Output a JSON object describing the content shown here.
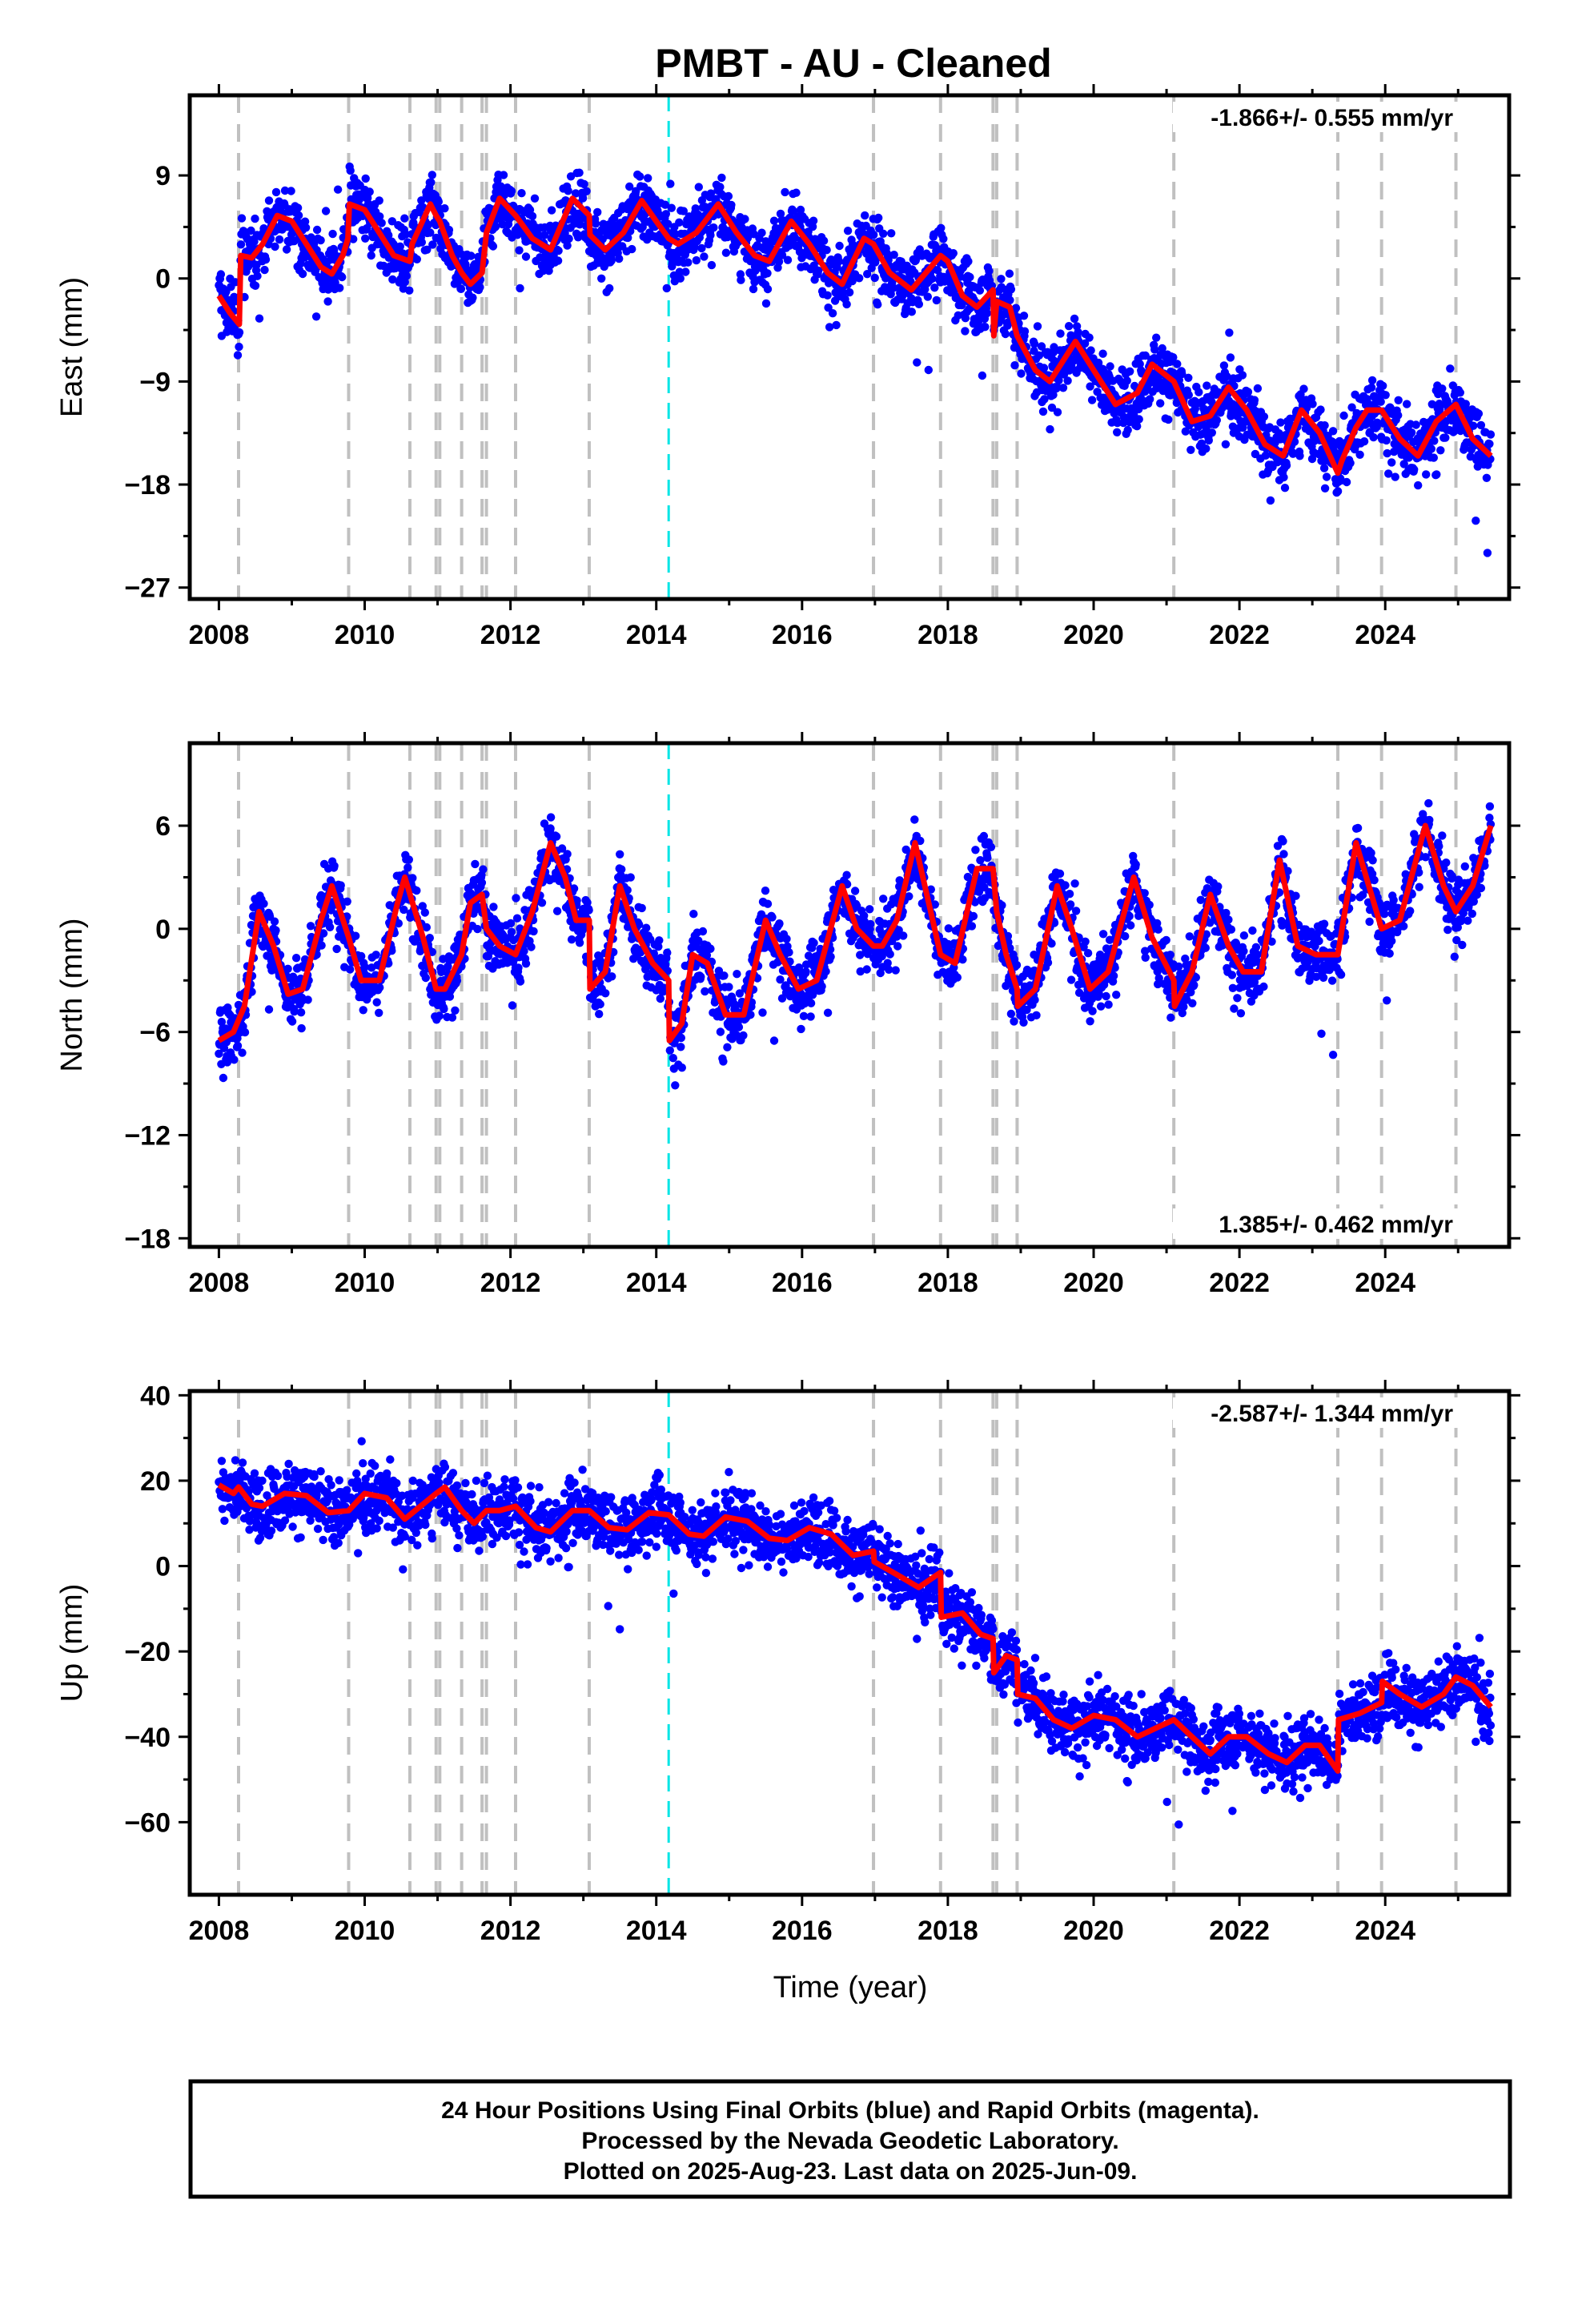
{
  "title": "PMBT  - AU - Cleaned",
  "footer": {
    "line1": "24 Hour Positions Using Final Orbits (blue) and Rapid Orbits (magenta).",
    "line2": "Processed by the Nevada Geodetic Laboratory.",
    "line3": "Plotted on 2025-Aug-23. Last data on 2025-Jun-09."
  },
  "colors": {
    "final_orbits": "#0000ff",
    "model_fit": "#ff0000",
    "equipment_change": "#c0c0c0",
    "earthquake": "#00e5e5"
  },
  "chart_data": [
    {
      "type": "scatter",
      "component": "east",
      "ylabel": "East (mm)",
      "xlabel": "",
      "rate_text": "-1.866+/- 0.555 mm/yr",
      "rate_position": "top-right",
      "xlim": [
        2007.6,
        2025.7
      ],
      "ylim": [
        -28,
        16
      ],
      "x_ticks": [
        "2008",
        "2010",
        "2012",
        "2014",
        "2016",
        "2018",
        "2020",
        "2022",
        "2024"
      ],
      "y_ticks": [
        "9",
        "0",
        "-9",
        "-18",
        "-27"
      ],
      "y_tick_values": [
        9,
        0,
        -9,
        -18,
        -27
      ],
      "events": [
        2008.27,
        2009.78,
        2010.62,
        2010.98,
        2011.03,
        2011.33,
        2011.61,
        2011.67,
        2012.07,
        2013.08,
        2016.98,
        2017.9,
        2018.62,
        2018.67,
        2018.95,
        2021.1,
        2023.35,
        2023.95,
        2024.97
      ],
      "earthquake_events": [
        2014.17
      ],
      "fit_line": [
        [
          2008.0,
          -1.5
        ],
        [
          2008.15,
          -3.0
        ],
        [
          2008.28,
          -4.0
        ],
        [
          2008.3,
          2.0
        ],
        [
          2008.45,
          1.8
        ],
        [
          2008.6,
          3.0
        ],
        [
          2008.8,
          5.5
        ],
        [
          2009.0,
          5.0
        ],
        [
          2009.2,
          3.0
        ],
        [
          2009.4,
          1.0
        ],
        [
          2009.55,
          0.4
        ],
        [
          2009.7,
          2.0
        ],
        [
          2009.77,
          3.5
        ],
        [
          2009.79,
          6.5
        ],
        [
          2010.0,
          6.0
        ],
        [
          2010.2,
          4.0
        ],
        [
          2010.4,
          2.0
        ],
        [
          2010.62,
          1.5
        ],
        [
          2010.65,
          3.0
        ],
        [
          2010.9,
          6.5
        ],
        [
          2010.98,
          5.5
        ],
        [
          2011.03,
          5.0
        ],
        [
          2011.2,
          2.0
        ],
        [
          2011.33,
          0.5
        ],
        [
          2011.45,
          -0.5
        ],
        [
          2011.61,
          0.5
        ],
        [
          2011.67,
          4.0
        ],
        [
          2011.85,
          7.0
        ],
        [
          2012.07,
          5.5
        ],
        [
          2012.3,
          3.5
        ],
        [
          2012.55,
          2.5
        ],
        [
          2012.85,
          7.0
        ],
        [
          2013.08,
          5.5
        ],
        [
          2013.09,
          3.8
        ],
        [
          2013.3,
          2.5
        ],
        [
          2013.55,
          4.0
        ],
        [
          2013.8,
          6.8
        ],
        [
          2014.0,
          5.0
        ],
        [
          2014.17,
          3.5
        ],
        [
          2014.3,
          3.0
        ],
        [
          2014.55,
          4.0
        ],
        [
          2014.85,
          6.5
        ],
        [
          2015.1,
          4.0
        ],
        [
          2015.35,
          2.0
        ],
        [
          2015.55,
          1.5
        ],
        [
          2015.85,
          5.0
        ],
        [
          2016.1,
          3.0
        ],
        [
          2016.35,
          0.5
        ],
        [
          2016.55,
          -0.5
        ],
        [
          2016.85,
          3.5
        ],
        [
          2016.98,
          3.0
        ],
        [
          2017.2,
          0.5
        ],
        [
          2017.5,
          -1.0
        ],
        [
          2017.9,
          2.0
        ],
        [
          2018.0,
          1.5
        ],
        [
          2018.2,
          -1.5
        ],
        [
          2018.4,
          -2.5
        ],
        [
          2018.62,
          -1.0
        ],
        [
          2018.63,
          -5.0
        ],
        [
          2018.67,
          -2.0
        ],
        [
          2018.85,
          -2.5
        ],
        [
          2018.95,
          -5.0
        ],
        [
          2019.2,
          -8.0
        ],
        [
          2019.4,
          -9.0
        ],
        [
          2019.75,
          -5.5
        ],
        [
          2020.0,
          -8.0
        ],
        [
          2020.3,
          -11.0
        ],
        [
          2020.6,
          -10.0
        ],
        [
          2020.8,
          -7.5
        ],
        [
          2021.1,
          -9.0
        ],
        [
          2021.35,
          -12.5
        ],
        [
          2021.6,
          -12.0
        ],
        [
          2021.85,
          -9.5
        ],
        [
          2022.1,
          -11.5
        ],
        [
          2022.35,
          -14.5
        ],
        [
          2022.6,
          -15.5
        ],
        [
          2022.85,
          -11.5
        ],
        [
          2023.1,
          -13.5
        ],
        [
          2023.35,
          -17.0
        ],
        [
          2023.4,
          -16.0
        ],
        [
          2023.6,
          -13.0
        ],
        [
          2023.75,
          -11.5
        ],
        [
          2023.95,
          -11.5
        ],
        [
          2024.2,
          -14.0
        ],
        [
          2024.45,
          -15.5
        ],
        [
          2024.7,
          -12.5
        ],
        [
          2024.97,
          -11.0
        ],
        [
          2025.2,
          -14.0
        ],
        [
          2025.45,
          -15.5
        ]
      ]
    },
    {
      "type": "scatter",
      "component": "north",
      "ylabel": "North (mm)",
      "xlabel": "",
      "rate_text": "1.385+/- 0.462 mm/yr",
      "rate_position": "bottom-right",
      "xlim": [
        2007.6,
        2025.7
      ],
      "ylim": [
        -18.5,
        10.8
      ],
      "x_ticks": [
        "2008",
        "2010",
        "2012",
        "2014",
        "2016",
        "2018",
        "2020",
        "2022",
        "2024"
      ],
      "y_ticks": [
        "6",
        "0",
        "-6",
        "-12",
        "-18"
      ],
      "y_tick_values": [
        6,
        0,
        -6,
        -12,
        -18
      ],
      "events": [
        2008.27,
        2009.78,
        2010.62,
        2010.98,
        2011.03,
        2011.33,
        2011.61,
        2011.67,
        2012.07,
        2013.08,
        2016.98,
        2017.9,
        2018.62,
        2018.67,
        2018.95,
        2021.1,
        2023.35,
        2023.95,
        2024.97
      ],
      "earthquake_events": [
        2014.17
      ],
      "fit_line": [
        [
          2008.0,
          -6.5
        ],
        [
          2008.2,
          -6.0
        ],
        [
          2008.35,
          -4.5
        ],
        [
          2008.55,
          1.0
        ],
        [
          2008.75,
          -1.0
        ],
        [
          2008.95,
          -3.8
        ],
        [
          2009.15,
          -3.5
        ],
        [
          2009.4,
          0.5
        ],
        [
          2009.55,
          2.5
        ],
        [
          2009.78,
          -0.5
        ],
        [
          2009.95,
          -3.0
        ],
        [
          2010.2,
          -3.0
        ],
        [
          2010.45,
          1.5
        ],
        [
          2010.55,
          3.0
        ],
        [
          2010.8,
          -0.5
        ],
        [
          2010.98,
          -3.5
        ],
        [
          2011.1,
          -3.5
        ],
        [
          2011.33,
          -1.5
        ],
        [
          2011.45,
          1.5
        ],
        [
          2011.61,
          2.0
        ],
        [
          2011.67,
          0.0
        ],
        [
          2011.85,
          -1.0
        ],
        [
          2012.07,
          -1.5
        ],
        [
          2012.3,
          1.0
        ],
        [
          2012.55,
          5.0
        ],
        [
          2012.75,
          3.0
        ],
        [
          2012.9,
          0.5
        ],
        [
          2013.08,
          0.5
        ],
        [
          2013.09,
          -3.5
        ],
        [
          2013.3,
          -2.5
        ],
        [
          2013.5,
          2.5
        ],
        [
          2013.7,
          0.0
        ],
        [
          2013.95,
          -2.0
        ],
        [
          2014.17,
          -3.0
        ],
        [
          2014.18,
          -6.5
        ],
        [
          2014.35,
          -5.5
        ],
        [
          2014.5,
          -1.5
        ],
        [
          2014.7,
          -2.0
        ],
        [
          2014.95,
          -5.0
        ],
        [
          2015.2,
          -5.0
        ],
        [
          2015.5,
          0.5
        ],
        [
          2015.7,
          -1.5
        ],
        [
          2015.95,
          -3.5
        ],
        [
          2016.2,
          -3.0
        ],
        [
          2016.55,
          2.5
        ],
        [
          2016.75,
          0.0
        ],
        [
          2016.98,
          -1.0
        ],
        [
          2017.1,
          -1.0
        ],
        [
          2017.3,
          0.5
        ],
        [
          2017.55,
          5.0
        ],
        [
          2017.9,
          -1.5
        ],
        [
          2018.1,
          -2.0
        ],
        [
          2018.4,
          3.5
        ],
        [
          2018.62,
          3.5
        ],
        [
          2018.67,
          1.0
        ],
        [
          2018.8,
          -1.5
        ],
        [
          2018.95,
          -3.5
        ],
        [
          2018.96,
          -4.5
        ],
        [
          2019.2,
          -3.5
        ],
        [
          2019.5,
          2.5
        ],
        [
          2019.7,
          0.0
        ],
        [
          2019.95,
          -3.5
        ],
        [
          2020.2,
          -2.5
        ],
        [
          2020.55,
          3.0
        ],
        [
          2020.8,
          -0.5
        ],
        [
          2021.1,
          -3.0
        ],
        [
          2021.11,
          -4.5
        ],
        [
          2021.35,
          -2.5
        ],
        [
          2021.6,
          2.0
        ],
        [
          2021.85,
          -1.0
        ],
        [
          2022.05,
          -2.5
        ],
        [
          2022.3,
          -2.5
        ],
        [
          2022.55,
          4.0
        ],
        [
          2022.8,
          -1.0
        ],
        [
          2023.05,
          -1.5
        ],
        [
          2023.35,
          -1.5
        ],
        [
          2023.6,
          5.0
        ],
        [
          2023.95,
          0.0
        ],
        [
          2024.2,
          0.5
        ],
        [
          2024.55,
          6.0
        ],
        [
          2024.8,
          2.5
        ],
        [
          2024.97,
          1.0
        ],
        [
          2025.2,
          2.5
        ],
        [
          2025.45,
          6.0
        ]
      ]
    },
    {
      "type": "scatter",
      "component": "up",
      "ylabel": "Up (mm)",
      "xlabel": "Time (year)",
      "rate_text": "-2.587+/- 1.344 mm/yr",
      "rate_position": "top-right",
      "xlim": [
        2007.6,
        2025.7
      ],
      "ylim": [
        -77,
        41
      ],
      "x_ticks": [
        "2008",
        "2010",
        "2012",
        "2014",
        "2016",
        "2018",
        "2020",
        "2022",
        "2024"
      ],
      "y_ticks": [
        "40",
        "20",
        "0",
        "-20",
        "-40",
        "-60"
      ],
      "y_tick_values": [
        40,
        20,
        0,
        -20,
        -40,
        -60
      ],
      "events": [
        2008.27,
        2009.78,
        2010.62,
        2010.98,
        2011.03,
        2011.33,
        2011.61,
        2011.67,
        2012.07,
        2013.08,
        2016.98,
        2017.9,
        2018.62,
        2018.67,
        2018.95,
        2021.1,
        2023.35,
        2023.95,
        2024.97
      ],
      "earthquake_events": [
        2014.17
      ],
      "fit_line": [
        [
          2008.0,
          19.0
        ],
        [
          2008.2,
          17.0
        ],
        [
          2008.27,
          18.5
        ],
        [
          2008.45,
          14.5
        ],
        [
          2008.6,
          14.0
        ],
        [
          2008.9,
          17.0
        ],
        [
          2009.2,
          16.5
        ],
        [
          2009.5,
          12.5
        ],
        [
          2009.78,
          13.0
        ],
        [
          2010.0,
          17.0
        ],
        [
          2010.3,
          16.0
        ],
        [
          2010.55,
          11.0
        ],
        [
          2010.98,
          17.0
        ],
        [
          2011.1,
          18.5
        ],
        [
          2011.33,
          13.0
        ],
        [
          2011.5,
          10.0
        ],
        [
          2011.67,
          13.0
        ],
        [
          2011.85,
          13.0
        ],
        [
          2012.07,
          14.0
        ],
        [
          2012.35,
          9.0
        ],
        [
          2012.55,
          8.0
        ],
        [
          2012.85,
          13.0
        ],
        [
          2013.08,
          13.0
        ],
        [
          2013.35,
          9.0
        ],
        [
          2013.6,
          8.5
        ],
        [
          2013.9,
          12.5
        ],
        [
          2014.17,
          12.0
        ],
        [
          2014.45,
          7.5
        ],
        [
          2014.65,
          7.0
        ],
        [
          2014.95,
          11.5
        ],
        [
          2015.25,
          10.5
        ],
        [
          2015.55,
          6.5
        ],
        [
          2015.8,
          6.0
        ],
        [
          2016.1,
          9.0
        ],
        [
          2016.4,
          7.5
        ],
        [
          2016.7,
          2.5
        ],
        [
          2016.98,
          3.5
        ],
        [
          2016.99,
          1.0
        ],
        [
          2017.3,
          -2.0
        ],
        [
          2017.6,
          -5.0
        ],
        [
          2017.9,
          -1.5
        ],
        [
          2017.91,
          -12.0
        ],
        [
          2018.2,
          -11.0
        ],
        [
          2018.45,
          -16.0
        ],
        [
          2018.62,
          -17.0
        ],
        [
          2018.63,
          -25.0
        ],
        [
          2018.8,
          -21.0
        ],
        [
          2018.95,
          -22.0
        ],
        [
          2018.96,
          -30.0
        ],
        [
          2019.2,
          -31.0
        ],
        [
          2019.45,
          -36.0
        ],
        [
          2019.7,
          -38.0
        ],
        [
          2020.0,
          -35.0
        ],
        [
          2020.3,
          -36.0
        ],
        [
          2020.6,
          -40.0
        ],
        [
          2020.85,
          -38.0
        ],
        [
          2021.1,
          -36.0
        ],
        [
          2021.35,
          -40.0
        ],
        [
          2021.6,
          -44.0
        ],
        [
          2021.85,
          -40.0
        ],
        [
          2022.1,
          -40.0
        ],
        [
          2022.4,
          -44.0
        ],
        [
          2022.65,
          -46.0
        ],
        [
          2022.9,
          -42.0
        ],
        [
          2023.1,
          -42.0
        ],
        [
          2023.35,
          -48.0
        ],
        [
          2023.36,
          -36.0
        ],
        [
          2023.65,
          -34.5
        ],
        [
          2023.95,
          -32.0
        ],
        [
          2023.96,
          -27.0
        ],
        [
          2024.2,
          -30.0
        ],
        [
          2024.5,
          -33.0
        ],
        [
          2024.8,
          -30.0
        ],
        [
          2024.97,
          -26.0
        ],
        [
          2025.2,
          -28.0
        ],
        [
          2025.45,
          -33.0
        ]
      ]
    }
  ]
}
